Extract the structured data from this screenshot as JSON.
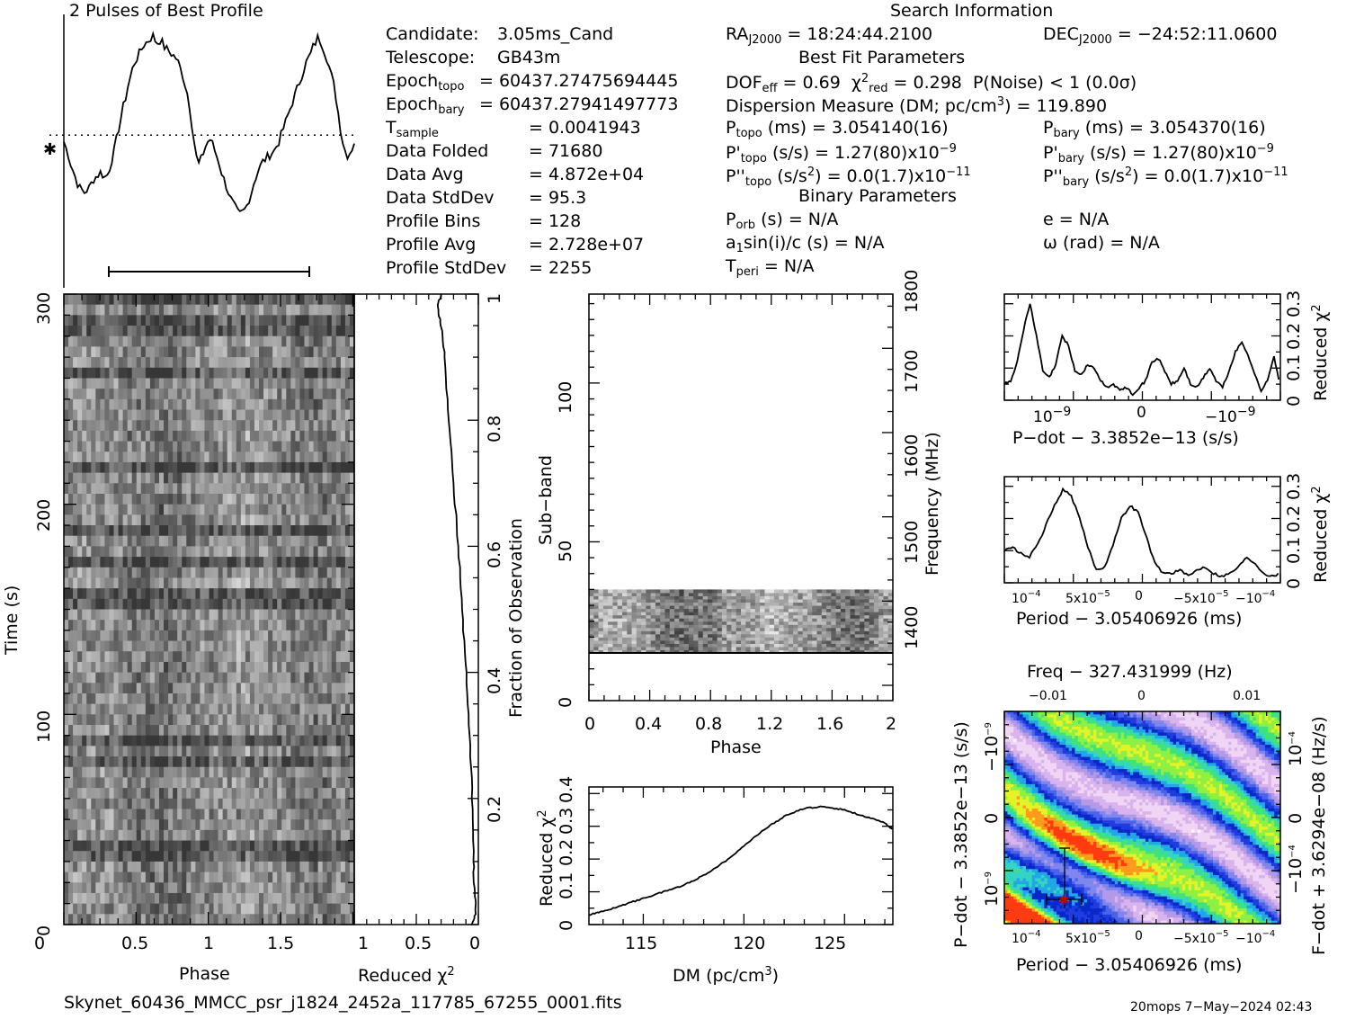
{
  "header": {
    "profile_title": "2 Pulses of Best Profile",
    "search_title": "Search Information",
    "best_fit_title": "Best Fit Parameters",
    "binary_title": "Binary Parameters"
  },
  "info_left": [
    {
      "label": "Candidate:",
      "value": "3.05ms_Cand"
    },
    {
      "label": "Telescope:",
      "value": "GB43m"
    },
    {
      "label": "Epoch",
      "sub": "topo",
      "value": "= 60437.27475694445"
    },
    {
      "label": "Epoch",
      "sub": "bary",
      "value": "= 60437.27941497773"
    },
    {
      "label": "T",
      "sub": "sample",
      "value": "=   0.0041943"
    },
    {
      "label": "Data Folded",
      "value": "=   71680"
    },
    {
      "label": "Data Avg",
      "value": "=   4.872e+04"
    },
    {
      "label": "Data StdDev",
      "value": "=   95.3"
    },
    {
      "label": "Profile Bins",
      "value": "=   128"
    },
    {
      "label": "Profile Avg",
      "value": "=   2.728e+07"
    },
    {
      "label": "Profile StdDev",
      "value": "=   2255"
    }
  ],
  "info_mid": {
    "ra": "RA",
    "ra_sub": "J2000",
    "ra_value": "= 18:24:44.2100",
    "dec": "DEC",
    "dec_sub": "J2000",
    "dec_value": "= −24:52:11.0600",
    "dof": "DOF",
    "dof_sub": "eff",
    "dof_value": "= 0.69",
    "chi": "χ",
    "chi_sup": "2",
    "chi_sub": "red",
    "chi_value": "= 0.298",
    "pnoise": "P(Noise) < 1   (0.0σ)",
    "dm_line": "Dispersion Measure (DM; pc/cm",
    "dm_sup": "3",
    "dm_value": ") = 119.890",
    "ptopo": "P",
    "ptopo_sub": "topo",
    "ptopo_value": "(ms) =  3.054140(16)",
    "pbary": "P",
    "pbary_sub": "bary",
    "pbary_value": "(ms) =  3.054370(16)",
    "pdtopo": "P'",
    "pdtopo_sub": "topo",
    "pdtopo_value": "(s/s) =  1.27(80)x10",
    "pdtopo_exp": "−9",
    "pdbary": "P'",
    "pdbary_sub": "bary",
    "pdbary_value": "(s/s) =  1.27(80)x10",
    "pdbary_exp": "−9",
    "pddtopo": "P''",
    "pddtopo_sub": "topo",
    "pddtopo_value": "(s/s",
    "pddtopo_sup": "2",
    "pddtopo_rest": ") = 0.0(1.7)x10",
    "pddtopo_exp": "−11",
    "pddbary": "P''",
    "pddbary_sub": "bary",
    "pddbary_value": "(s/s",
    "pddbary_sup": "2",
    "pddbary_rest": ") = 0.0(1.7)x10",
    "pddbary_exp": "−11",
    "porb": "P",
    "porb_sub": "orb",
    "porb_value": "(s) = N/A",
    "ecc": "e = N/A",
    "a1": "a",
    "a1_sub": "1",
    "a1_value": "sin(i)/c (s) = N/A",
    "omega": "ω (rad) = N/A",
    "tperi": "T",
    "tperi_sub": "peri",
    "tperi_value": "= N/A"
  },
  "footer": {
    "filename": "Skynet_60436_MMCC_psr_j1824_2452a_117785_67255_0001.fits",
    "stamp": "20mops  7−May−2024 02:43"
  },
  "axes": {
    "time_ticks": [
      "0",
      "100",
      "200",
      "300"
    ],
    "time_label": "Time (s)",
    "phase_ticks": [
      "0",
      "0.5",
      "1",
      "1.5"
    ],
    "phase_label": "Phase",
    "redchi_ticks": [
      "1",
      "0.5",
      "0"
    ],
    "redchi_label": "Reduced χ",
    "redchi_sup": "2",
    "frac_ticks": [
      "0.2",
      "0.4",
      "0.6",
      "0.8",
      "1"
    ],
    "frac_label": "Fraction of Observation",
    "subband_ticks": [
      "0",
      "50",
      "100"
    ],
    "subband_label": "Sub−band",
    "sb_phase_ticks": [
      "0",
      "0.4",
      "0.8",
      "1.2",
      "1.6",
      "2"
    ],
    "freq_ticks": [
      "1400",
      "1500",
      "1600",
      "1700",
      "1800"
    ],
    "freq_label": "Frequency (MHz)",
    "dm_ticks": [
      "115",
      "120",
      "125"
    ],
    "dm_label": "DM (pc/cm",
    "dm_label_sup": "3",
    "dm_label_end": ")",
    "dm_y_ticks": [
      "0",
      "0.1",
      "0.2",
      "0.3",
      "0.4"
    ],
    "pdot_label": "P−dot − 3.3852e−13 (s/s)",
    "pdot_ticks": [
      "10",
      "0",
      "−10"
    ],
    "pdot_exp": "−9",
    "small_y_ticks": [
      "0",
      "0.1",
      "0.2",
      "0.3"
    ],
    "period_label": "Period − 3.05406926 (ms)",
    "period_ticks": [
      "10",
      "5x10",
      "0",
      "−5x10",
      "−10"
    ],
    "period_exps": [
      "−4",
      "−5",
      "",
      "−5",
      "−4"
    ],
    "freq_top_label": "Freq − 327.431999 (Hz)",
    "freq_top_ticks": [
      "−0.01",
      "0",
      "0.01"
    ],
    "pp_y_label": "P−dot − 3.3852e−13 (s/s)",
    "pp_y_ticks": [
      "10",
      "0",
      "−10"
    ],
    "pp_y_exp": "−9",
    "fdot_label": "F−dot + 3.6294e−08 (Hz/s)",
    "fdot_ticks": [
      "10",
      "0",
      "−10"
    ],
    "fdot_exps": [
      "−4",
      "",
      "−4"
    ]
  },
  "chart_data": [
    {
      "type": "line",
      "title": "2 Pulses of Best Profile",
      "x_range": [
        0,
        2
      ],
      "profile_bins": 128,
      "values": [
        0.52,
        0.49,
        0.46,
        0.42,
        0.39,
        0.36,
        0.33,
        0.31,
        0.3,
        0.29,
        0.3,
        0.31,
        0.33,
        0.35,
        0.36,
        0.37,
        0.38,
        0.37,
        0.36,
        0.37,
        0.4,
        0.44,
        0.48,
        0.53,
        0.58,
        0.63,
        0.68,
        0.72,
        0.77,
        0.81,
        0.85,
        0.88,
        0.9,
        0.92,
        0.94,
        0.96,
        0.97,
        0.98,
        0.99,
        1.0,
        0.98,
        0.97,
        0.98,
        0.97,
        0.95,
        0.94,
        0.93,
        0.92,
        0.91,
        0.9,
        0.88,
        0.85,
        0.82,
        0.78,
        0.74,
        0.68,
        0.6,
        0.52,
        0.45,
        0.42,
        0.44,
        0.47,
        0.5,
        0.52,
        0.53,
        0.51,
        0.48,
        0.45,
        0.42,
        0.38,
        0.35,
        0.32,
        0.29,
        0.26,
        0.24,
        0.22,
        0.2,
        0.19,
        0.2,
        0.21,
        0.23,
        0.26,
        0.29,
        0.33,
        0.36,
        0.39,
        0.41,
        0.43,
        0.44,
        0.45,
        0.46,
        0.47,
        0.48,
        0.5,
        0.52,
        0.55,
        0.58,
        0.61,
        0.64,
        0.67,
        0.7,
        0.73,
        0.76,
        0.79,
        0.82,
        0.85,
        0.88,
        0.9,
        0.92,
        0.95,
        0.97,
        0.99,
        0.98,
        0.96,
        0.93,
        0.9,
        0.86,
        0.82,
        0.78,
        0.72,
        0.65,
        0.58,
        0.52,
        0.48,
        0.46,
        0.47,
        0.49,
        0.52
      ],
      "mean_level": 0.55
    },
    {
      "type": "heatmap",
      "name": "time-phase",
      "x_range": [
        0,
        2
      ],
      "y_range": [
        0,
        300
      ],
      "xlabel": "Phase",
      "ylabel": "Time (s)"
    },
    {
      "type": "line",
      "name": "reduced-chi2-vs-time",
      "xlabel": "Reduced χ2",
      "x_range": [
        1,
        0
      ],
      "y_range": [
        0,
        1
      ],
      "values": [
        [
          0.05,
          0.0
        ],
        [
          0.02,
          0.02
        ],
        [
          0.03,
          0.05
        ],
        [
          0.04,
          0.1
        ],
        [
          0.05,
          0.2
        ],
        [
          0.07,
          0.3
        ],
        [
          0.1,
          0.4
        ],
        [
          0.13,
          0.5
        ],
        [
          0.16,
          0.6
        ],
        [
          0.2,
          0.7
        ],
        [
          0.24,
          0.8
        ],
        [
          0.27,
          0.9
        ],
        [
          0.3,
          0.95
        ],
        [
          0.33,
          0.98
        ],
        [
          0.3,
          1.0
        ]
      ]
    },
    {
      "type": "heatmap",
      "name": "subband-phase",
      "x_range": [
        0,
        2
      ],
      "y_range": [
        0,
        128
      ],
      "xlabel": "Phase",
      "ylabel": "Sub−band",
      "active_subbands": [
        15,
        35
      ]
    },
    {
      "type": "line",
      "name": "reduced-chi2-vs-dm",
      "xlabel": "DM (pc/cm3)",
      "ylabel": "Reduced χ2",
      "x_range": [
        112.3,
        127.4
      ],
      "y_range": [
        0,
        0.42
      ],
      "x": [
        112.3,
        113,
        114,
        115,
        116,
        117,
        118,
        119,
        120,
        121,
        122,
        123,
        124,
        125,
        126,
        127,
        127.4
      ],
      "y": [
        0.03,
        0.04,
        0.06,
        0.08,
        0.1,
        0.12,
        0.15,
        0.19,
        0.24,
        0.29,
        0.33,
        0.355,
        0.36,
        0.35,
        0.33,
        0.31,
        0.29
      ]
    },
    {
      "type": "line",
      "name": "reduced-chi2-vs-pdot",
      "xlabel": "P−dot − 3.3852e−13 (s/s)",
      "ylabel": "Reduced χ2",
      "y_range": [
        0,
        0.33
      ],
      "x_range": [
        -1.9e-09,
        1.9e-09
      ],
      "y": [
        0.05,
        0.06,
        0.12,
        0.22,
        0.3,
        0.2,
        0.09,
        0.07,
        0.11,
        0.2,
        0.17,
        0.09,
        0.08,
        0.11,
        0.1,
        0.06,
        0.04,
        0.05,
        0.03,
        0.04,
        0.02,
        0.04,
        0.06,
        0.12,
        0.13,
        0.09,
        0.05,
        0.06,
        0.1,
        0.05,
        0.04,
        0.07,
        0.1,
        0.06,
        0.04,
        0.09,
        0.15,
        0.18,
        0.14,
        0.08,
        0.03,
        0.06,
        0.14,
        0.04
      ]
    },
    {
      "type": "line",
      "name": "reduced-chi2-vs-period",
      "xlabel": "Period − 3.05406926 (ms)",
      "ylabel": "Reduced χ2",
      "y_range": [
        0,
        0.33
      ],
      "y": [
        0.1,
        0.11,
        0.09,
        0.08,
        0.12,
        0.18,
        0.24,
        0.29,
        0.27,
        0.2,
        0.11,
        0.04,
        0.05,
        0.12,
        0.2,
        0.24,
        0.22,
        0.14,
        0.06,
        0.03,
        0.03,
        0.04,
        0.02,
        0.04,
        0.05,
        0.03,
        0.02,
        0.03,
        0.05,
        0.08,
        0.06,
        0.03,
        0.02,
        0.03
      ]
    },
    {
      "type": "heatmap",
      "name": "period-pdot",
      "xlabel": "Period − 3.05406926 (ms)",
      "ylabel": "P−dot − 3.3852e−13 (s/s)"
    }
  ]
}
